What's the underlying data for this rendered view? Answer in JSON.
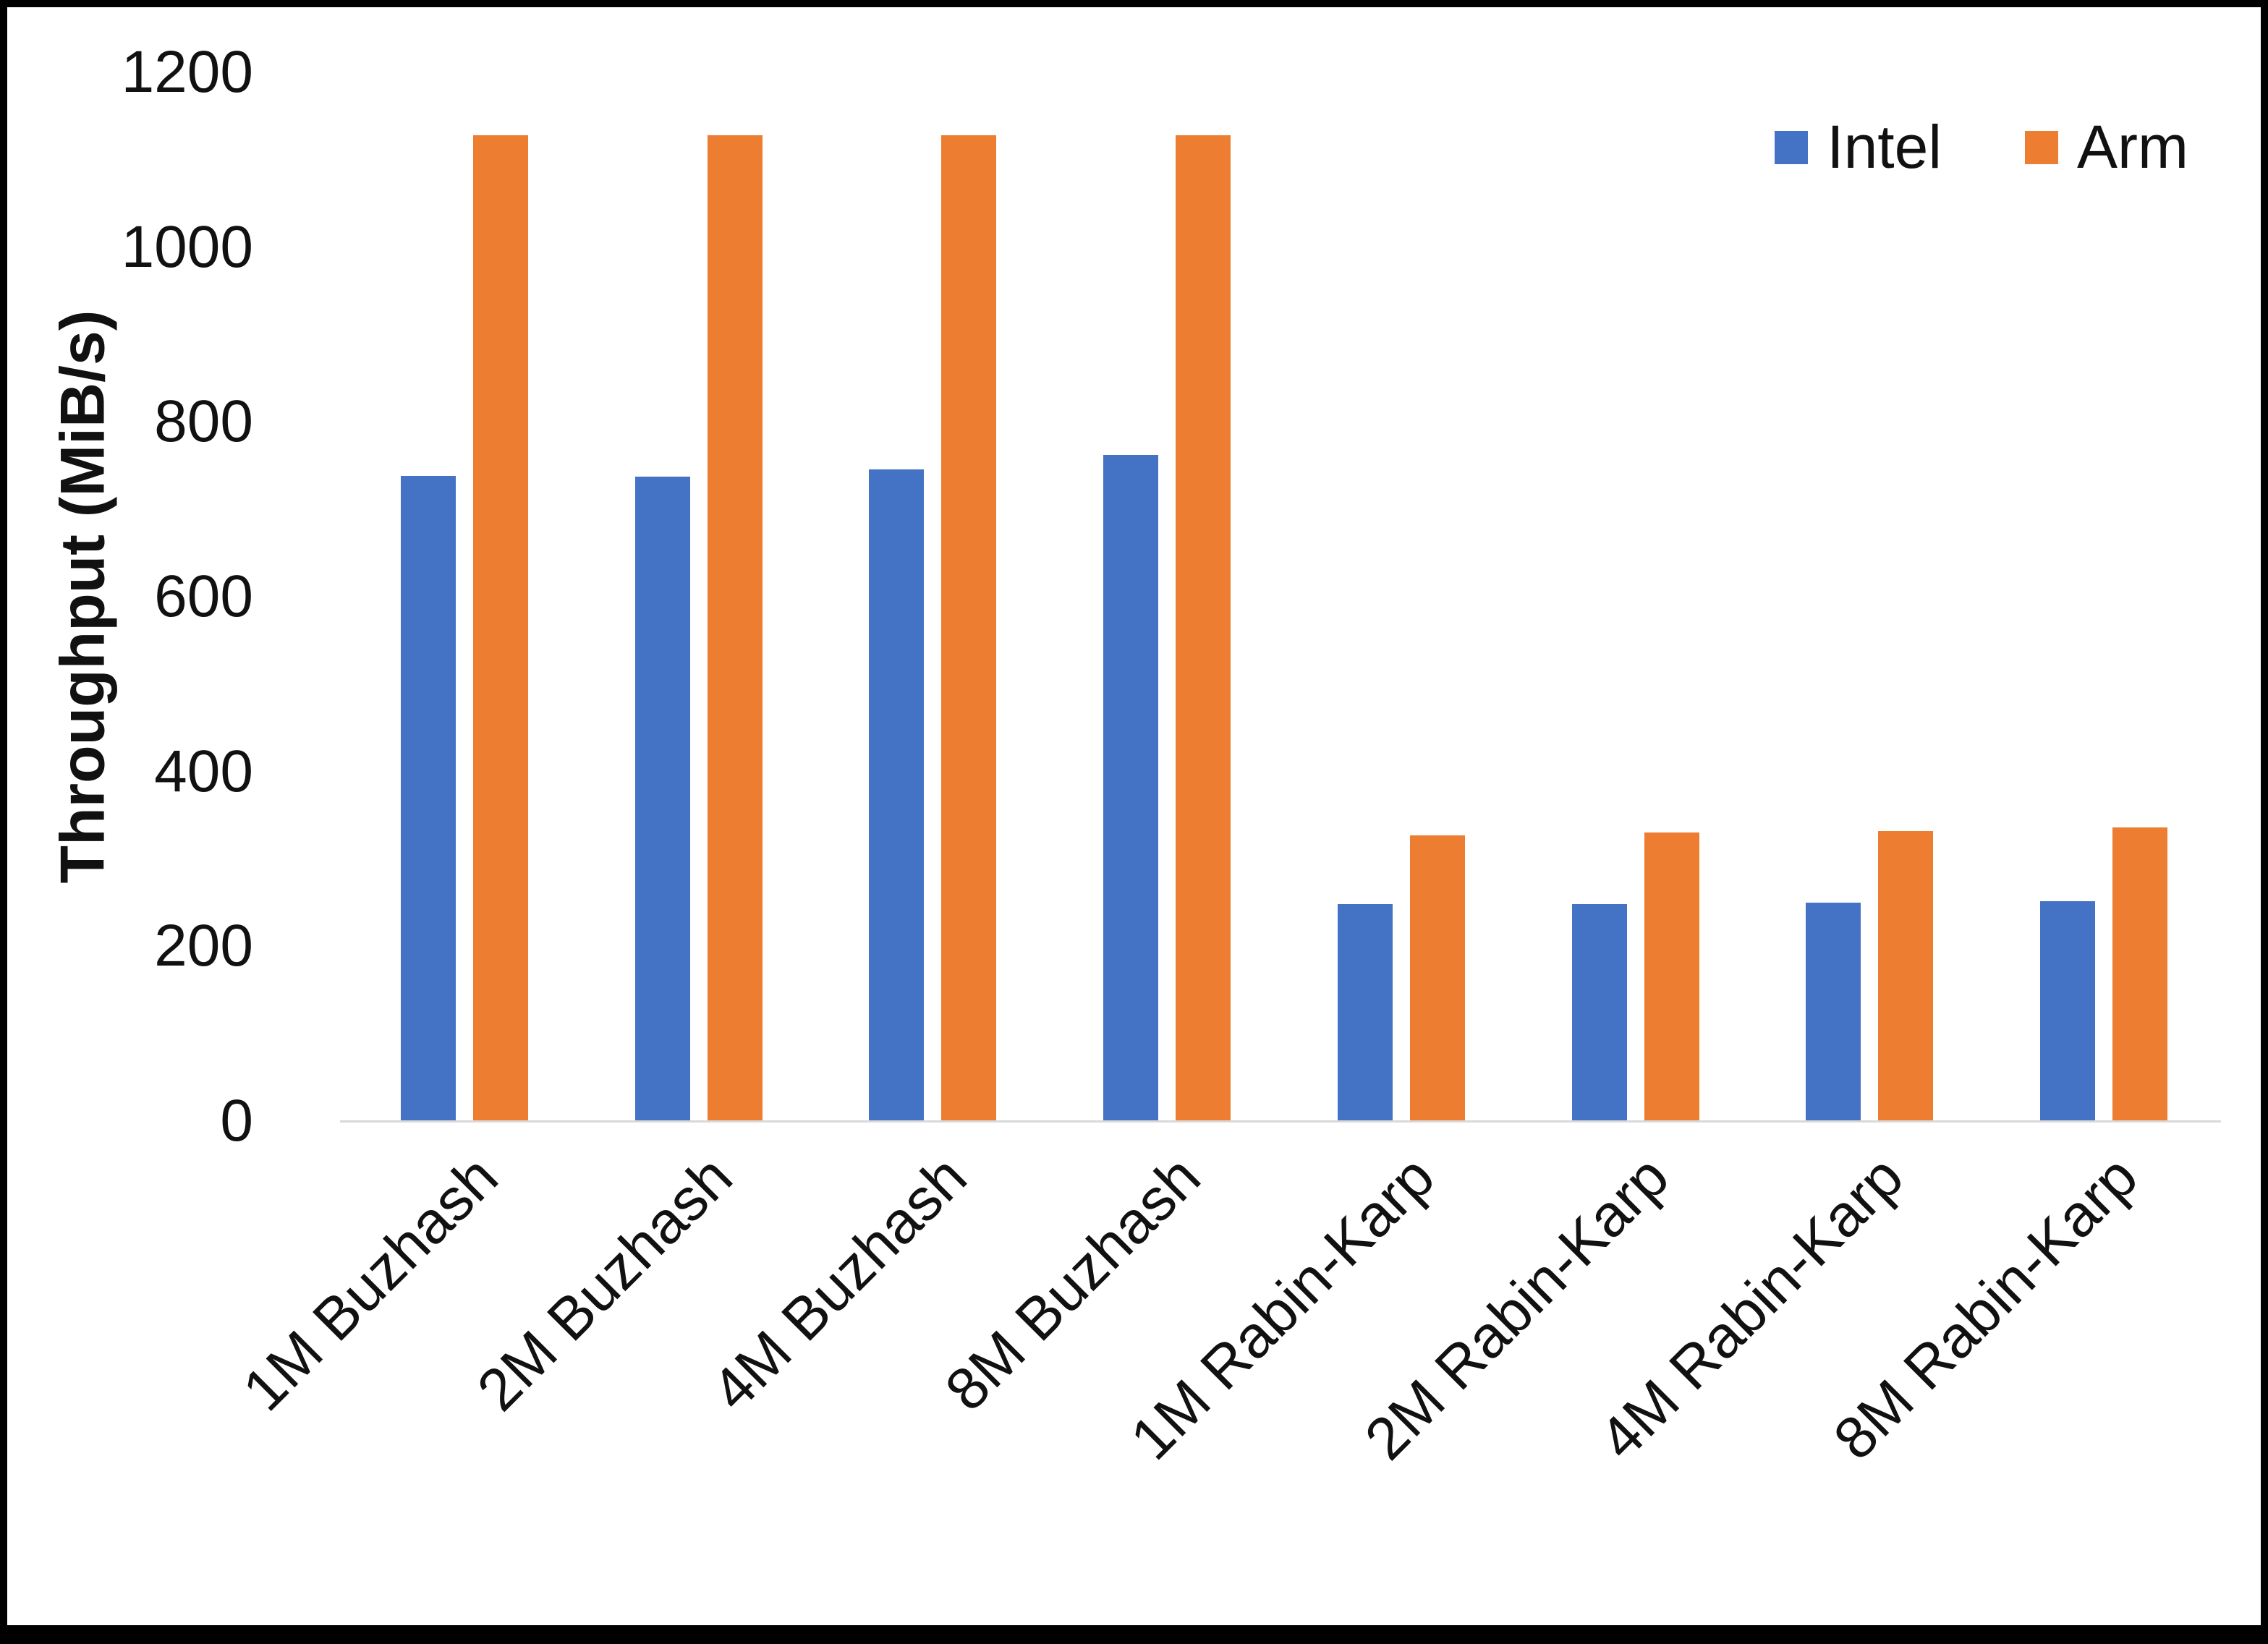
{
  "chart_data": {
    "type": "bar",
    "title": "",
    "xlabel": "",
    "ylabel": "Throughput (MiB/s)",
    "ylim": [
      0,
      1200
    ],
    "yticks": [
      0,
      200,
      400,
      600,
      800,
      1000,
      1200
    ],
    "grid": false,
    "legend_position": "top-right",
    "categories": [
      "1M Buzhash",
      "2M Buzhash",
      "4M Buzhash",
      "8M Buzhash",
      "1M Rabin-Karp",
      "2M Rabin-Karp",
      "4M Rabin-Karp",
      "8M Rabin-Karp"
    ],
    "series": [
      {
        "name": "Intel",
        "color": "#4472C4",
        "values": [
          738,
          737,
          746,
          762,
          248,
          248,
          250,
          252
        ]
      },
      {
        "name": "Arm",
        "color": "#ED7D31",
        "values": [
          1128,
          1128,
          1128,
          1128,
          327,
          330,
          332,
          336
        ]
      }
    ]
  },
  "colors": {
    "intel": "#4472C4",
    "arm": "#ED7D31",
    "axis_line": "#d9d9d9",
    "text": "#111111",
    "frame": "#000000"
  }
}
